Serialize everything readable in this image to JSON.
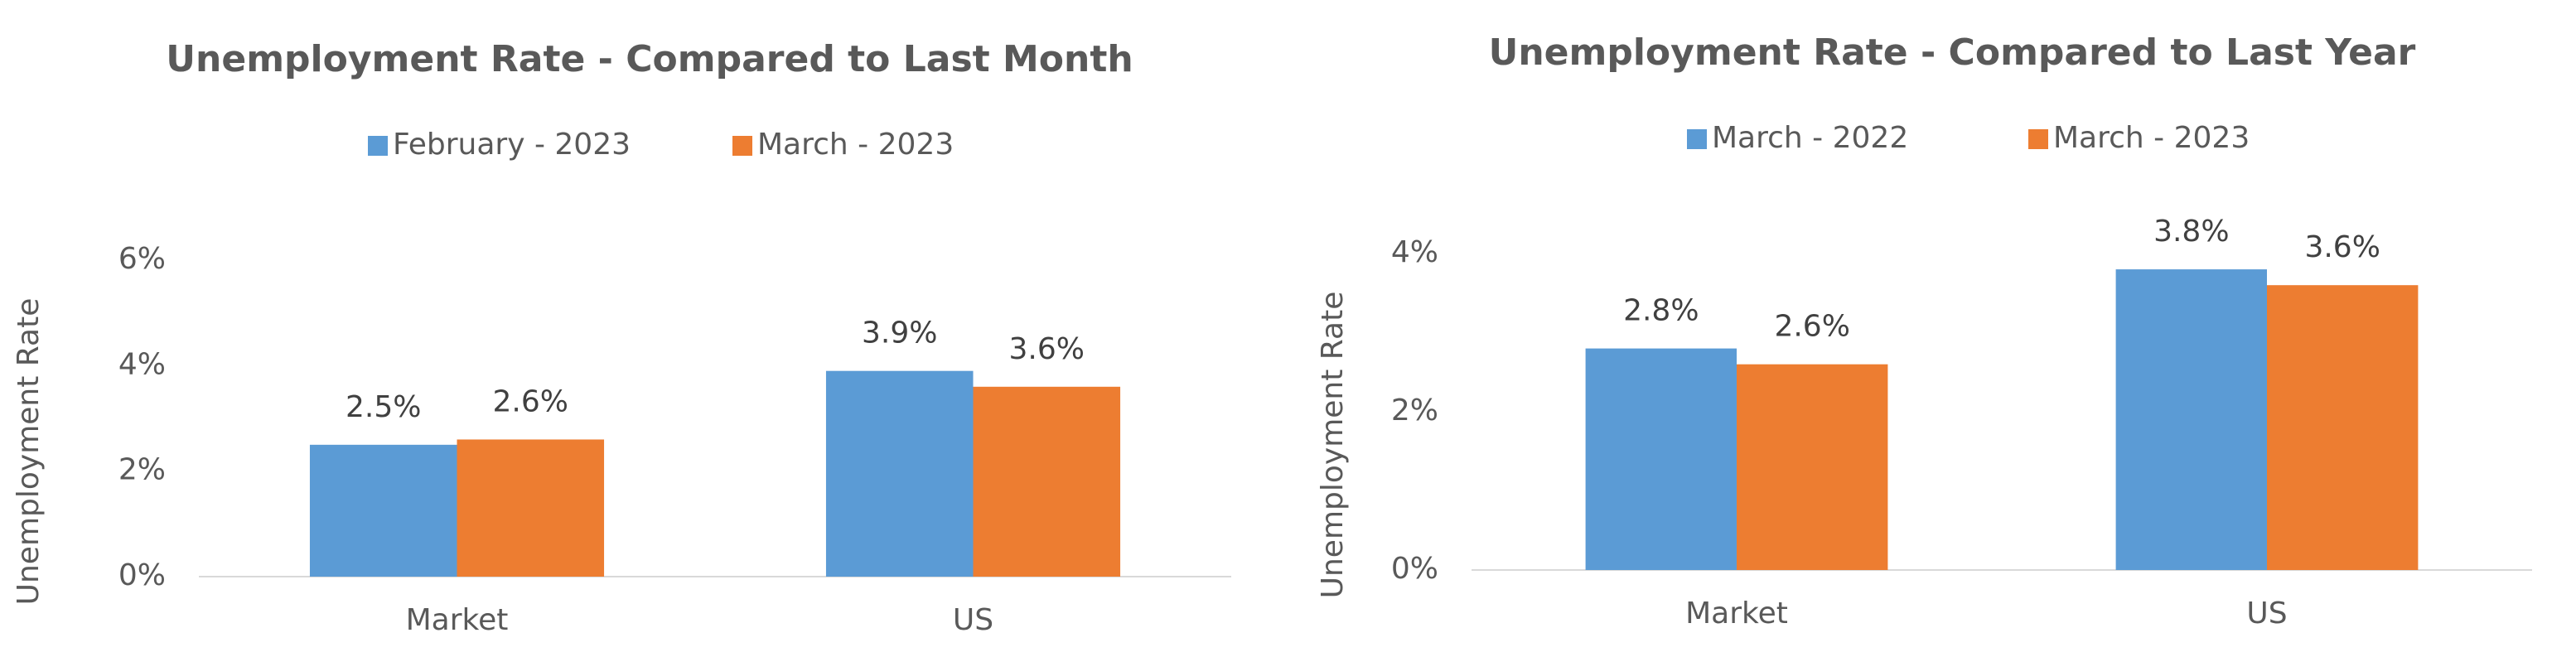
{
  "chart_data": [
    {
      "type": "bar",
      "title": "Unemployment Rate - Compared to Last Month",
      "y_label": "Unemployment Rate",
      "categories": [
        "Market",
        "US"
      ],
      "series": [
        {
          "name": "February - 2023",
          "color": "#5b9bd5",
          "values": [
            2.5,
            3.9
          ],
          "value_labels": [
            "2.5%",
            "3.9%"
          ]
        },
        {
          "name": "March - 2023",
          "color": "#ed7d31",
          "values": [
            2.6,
            3.6
          ],
          "value_labels": [
            "2.6%",
            "3.6%"
          ]
        }
      ],
      "ylim": [
        0,
        6
      ],
      "yticks": [
        {
          "value": 0,
          "label": "0%"
        },
        {
          "value": 2,
          "label": "2%"
        },
        {
          "value": 4,
          "label": "4%"
        },
        {
          "value": 6,
          "label": "6%"
        }
      ]
    },
    {
      "type": "bar",
      "title": "Unemployment Rate - Compared to Last Year",
      "y_label": "Unemployment Rate",
      "categories": [
        "Market",
        "US"
      ],
      "series": [
        {
          "name": "March - 2022",
          "color": "#5b9bd5",
          "values": [
            2.8,
            3.8
          ],
          "value_labels": [
            "2.8%",
            "3.8%"
          ]
        },
        {
          "name": "March - 2023",
          "color": "#ed7d31",
          "values": [
            2.6,
            3.6
          ],
          "value_labels": [
            "2.6%",
            "3.6%"
          ]
        }
      ],
      "ylim": [
        0,
        4
      ],
      "yticks": [
        {
          "value": 0,
          "label": "0%"
        },
        {
          "value": 2,
          "label": "2%"
        },
        {
          "value": 4,
          "label": "4%"
        }
      ]
    }
  ]
}
